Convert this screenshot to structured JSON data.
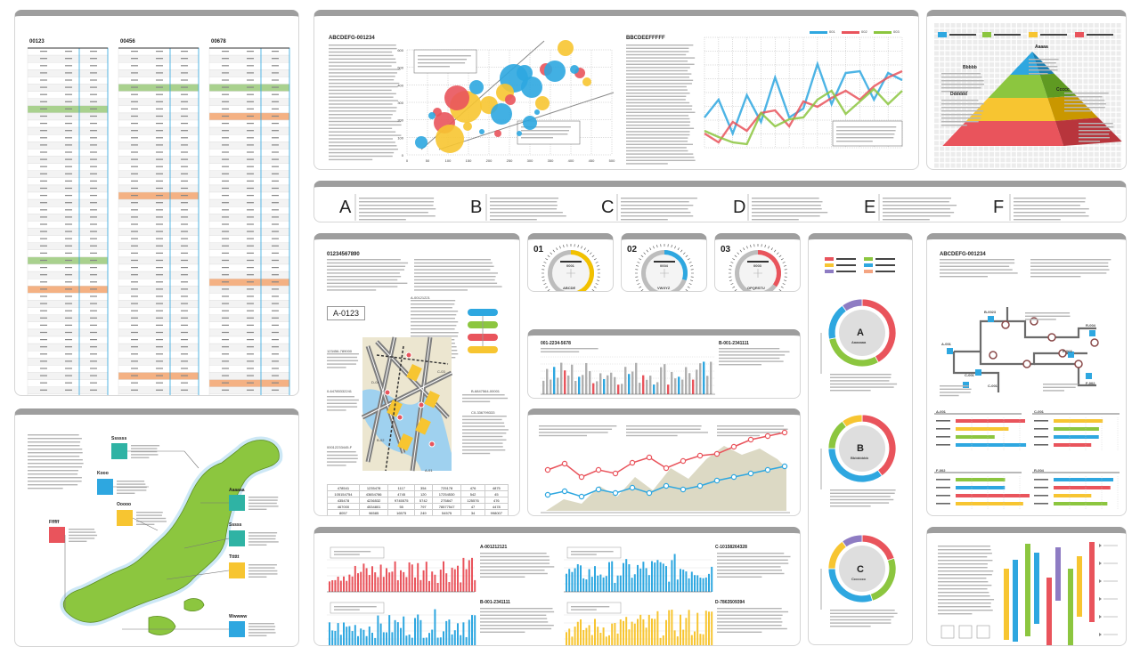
{
  "tables": {
    "headers": [
      "00123",
      "00456",
      "00678"
    ],
    "rows_per_table": 49
  },
  "bubble": {
    "title": "ABCDEFG-001234",
    "y_ticks": [
      "600",
      "500",
      "400",
      "300",
      "200",
      "100",
      "0"
    ],
    "x_ticks": [
      "0",
      "50",
      "100",
      "150",
      "200",
      "250",
      "300",
      "350",
      "400",
      "450",
      "500"
    ]
  },
  "line": {
    "title": "BBCDEEFFFFF",
    "legend": [
      "001",
      "002",
      "003"
    ],
    "colors": {
      "001": "#2ea7e0",
      "002": "#e9545c",
      "003": "#8cc63f"
    }
  },
  "pyramid": {
    "legend_label": "■■■■■■■■",
    "labels": [
      "Aaaaa",
      "Bbbbb",
      "Ccccc",
      "Dddddd"
    ],
    "colors": [
      "#2ea7e0",
      "#8cc63f",
      "#f7c531",
      "#e9545c"
    ]
  },
  "letters": [
    "A",
    "B",
    "C",
    "D",
    "E",
    "F"
  ],
  "map": {
    "title": "01234567890",
    "code": "A-0123",
    "labels": [
      "A-00121221",
      "123456-789000",
      "D-04",
      "C-03",
      "B-6847564-00001",
      "0-64785332241",
      "C0-336799333",
      "B-02",
      "A-01",
      "00012233445-F"
    ],
    "table": [
      [
        "478541",
        "1235478",
        "1117",
        "354",
        "725178",
        "476",
        "4875"
      ],
      [
        "105154754",
        "43654786",
        "4745",
        "120",
        "17254530",
        "542",
        "45"
      ],
      [
        "435478",
        "4236532",
        "9745575",
        "5742",
        "275847",
        "125576",
        "476"
      ],
      [
        "467000",
        "4534801",
        "55",
        "797",
        "78577547",
        "47",
        "4478"
      ],
      [
        "8057",
        "96585",
        "16575",
        "249",
        "54575",
        "34",
        "998007"
      ]
    ]
  },
  "dials": [
    {
      "num": "01",
      "code": "0001",
      "label": "ABCDE",
      "accent": "#f2c100"
    },
    {
      "num": "02",
      "code": "0004",
      "label": "VWXYZ",
      "accent": "#2ea7e0"
    },
    {
      "num": "03",
      "code": "0003",
      "label": "OPQRSTU",
      "accent": "#e9545c"
    }
  ],
  "barmid": {
    "left": "001-2234-5678",
    "right": "B-001-2341111"
  },
  "bottom_bars": [
    "A-001212121",
    "B-001-2341111",
    "C-10158264328",
    "D-7863509394"
  ],
  "donuts": {
    "legend": "■■■■■■■■■",
    "items": [
      {
        "letter": "A",
        "sub": "Aaaaaaa"
      },
      {
        "letter": "B",
        "sub": "Bbbbbbbb"
      },
      {
        "letter": "C",
        "sub": "Ccccccc"
      }
    ]
  },
  "tree": {
    "title": "ABCDEFG-001234",
    "nodes": [
      "B-0023",
      "R-004",
      "E-003",
      "A-001",
      "C-001",
      "C-001",
      "F-002"
    ],
    "panels": [
      "A-001",
      "C-001",
      "F-002",
      "R-004"
    ],
    "rows": [
      "Aaaaaa",
      "Bbbbbb",
      "Cccc",
      "Dddddd"
    ]
  },
  "japan": {
    "labels": [
      "Ssssss",
      "Kooo",
      "Ooooo",
      "Aaaaaa",
      "Ffffff",
      "Sssss",
      "Tttttt",
      "Wwwww"
    ]
  }
}
